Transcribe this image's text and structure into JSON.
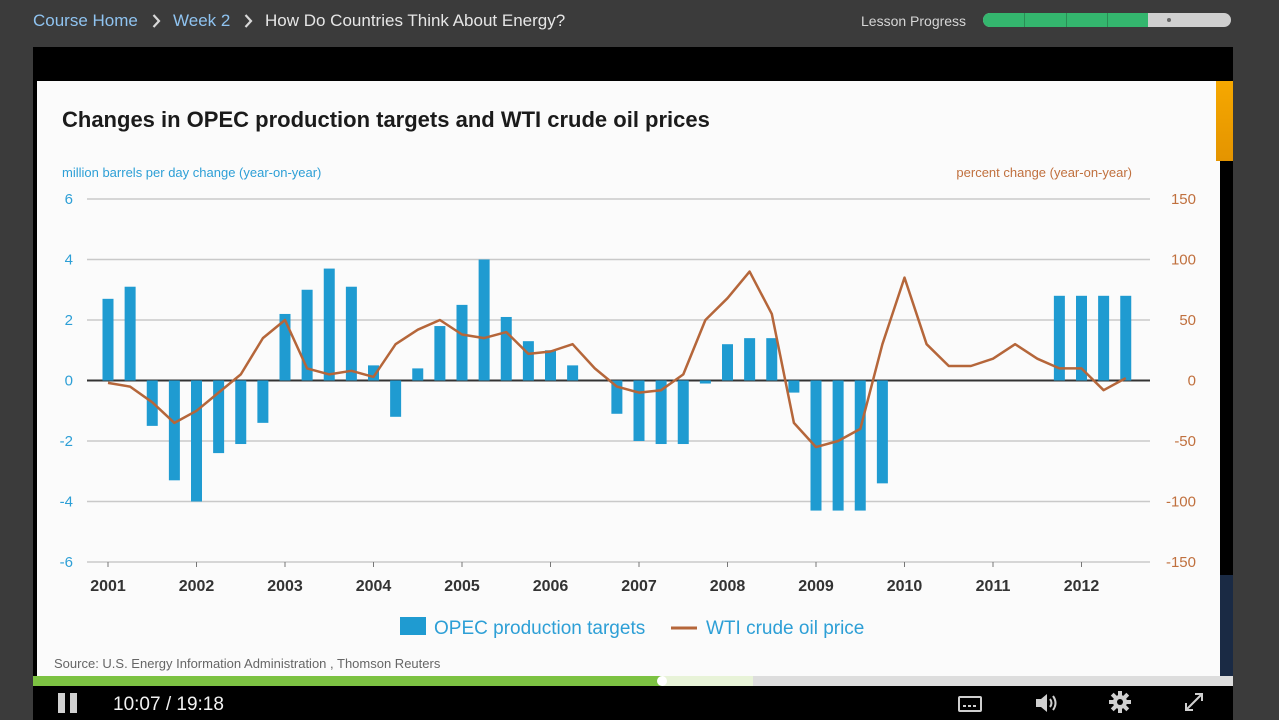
{
  "breadcrumb": [
    {
      "label": "Course Home"
    },
    {
      "label": "Week 2"
    },
    {
      "label": "How Do Countries Think About Energy?"
    }
  ],
  "lesson_progress": {
    "label": "Lesson Progress",
    "segments_total": 6,
    "segments_complete": 4,
    "current_segment": 5
  },
  "player": {
    "current_time": "10:07",
    "separator": "/",
    "duration": "19:18",
    "played_fraction": 0.5238,
    "buffered_fraction": 0.6
  },
  "chart_data": {
    "type": "bar+line",
    "title": "Changes in OPEC production targets and WTI crude oil prices",
    "ylabel_left": "million barrels per day change (year-on-year)",
    "ylabel_right": "percent change (year-on-year)",
    "ylim_left": [
      -6,
      6
    ],
    "ylim_right": [
      -150,
      150
    ],
    "left_ticks": [
      "6",
      "4",
      "2",
      "0",
      "-2",
      "-4",
      "-6"
    ],
    "right_ticks": [
      "150",
      "100",
      "50",
      "0",
      "-50",
      "-100",
      "-150"
    ],
    "x_tick_labels": [
      "2001",
      "2002",
      "2003",
      "2004",
      "2005",
      "2006",
      "2007",
      "2008",
      "2009",
      "2010",
      "2011",
      "2012"
    ],
    "x_range": [
      2001,
      2013
    ],
    "source": "Source:  U.S. Energy Information Administration ,  Thomson Reuters",
    "colors": {
      "bar": "#1f9bd1",
      "line": "#b5663a",
      "axis_text_left": "#2d9fd6",
      "axis_text_right": "#c0703e"
    },
    "series": [
      {
        "name": "OPEC production targets",
        "kind": "bar",
        "x": [
          2001.0,
          2001.25,
          2001.5,
          2001.75,
          2002.0,
          2002.25,
          2002.5,
          2002.75,
          2003.0,
          2003.25,
          2003.5,
          2003.75,
          2004.0,
          2004.25,
          2004.5,
          2004.75,
          2005.0,
          2005.25,
          2005.5,
          2005.75,
          2006.0,
          2006.25,
          2006.75,
          2007.0,
          2007.25,
          2007.5,
          2007.75,
          2008.0,
          2008.25,
          2008.5,
          2008.75,
          2009.0,
          2009.25,
          2009.5,
          2009.75,
          2011.75,
          2012.0,
          2012.25,
          2012.5
        ],
        "values": [
          2.7,
          3.1,
          -1.5,
          -3.3,
          -4.0,
          -2.4,
          -2.1,
          -1.4,
          2.2,
          3.0,
          3.7,
          3.1,
          0.5,
          -1.2,
          0.4,
          1.8,
          2.5,
          4.0,
          2.1,
          1.3,
          1.0,
          0.5,
          -1.1,
          -2.0,
          -2.1,
          -2.1,
          -0.1,
          1.2,
          1.4,
          1.4,
          -0.4,
          -4.3,
          -4.3,
          -4.3,
          -3.4,
          2.8,
          2.8,
          2.8,
          2.8
        ]
      },
      {
        "name": "WTI crude oil price",
        "kind": "line",
        "x": [
          2001.0,
          2001.25,
          2001.5,
          2001.75,
          2002.0,
          2002.25,
          2002.5,
          2002.75,
          2003.0,
          2003.25,
          2003.5,
          2003.75,
          2004.0,
          2004.25,
          2004.5,
          2004.75,
          2005.0,
          2005.25,
          2005.5,
          2005.75,
          2006.0,
          2006.25,
          2006.5,
          2006.75,
          2007.0,
          2007.25,
          2007.5,
          2007.75,
          2008.0,
          2008.25,
          2008.5,
          2008.75,
          2009.0,
          2009.25,
          2009.5,
          2009.75,
          2010.0,
          2010.25,
          2010.5,
          2010.75,
          2011.0,
          2011.25,
          2011.5,
          2011.75,
          2012.0,
          2012.25,
          2012.5
        ],
        "values": [
          -2,
          -5,
          -18,
          -35,
          -25,
          -10,
          5,
          35,
          50,
          10,
          5,
          8,
          3,
          30,
          42,
          50,
          38,
          35,
          40,
          22,
          24,
          30,
          10,
          -5,
          -10,
          -8,
          5,
          50,
          68,
          90,
          55,
          -35,
          -55,
          -50,
          -40,
          30,
          85,
          30,
          12,
          12,
          18,
          30,
          18,
          10,
          10,
          -8,
          2
        ]
      }
    ]
  }
}
